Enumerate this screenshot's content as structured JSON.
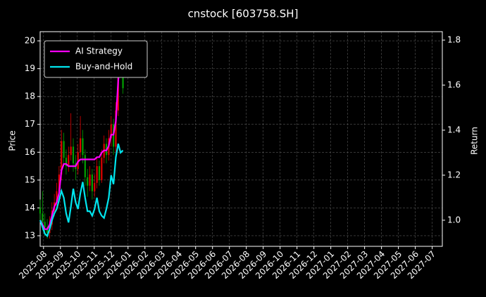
{
  "chart_data": {
    "type": "candlestick",
    "title": "cnstock [603758.SH]",
    "ylabel": "Price",
    "y2label": "Return",
    "x": [
      -0.2,
      -0.06,
      0.08,
      0.22,
      0.36,
      0.5,
      0.64,
      0.78,
      0.92,
      1.06,
      1.2,
      1.34,
      1.48,
      1.62,
      1.76,
      1.9,
      2.04,
      2.18,
      2.32,
      2.46,
      2.6,
      2.74,
      2.88,
      3.02,
      3.16,
      3.3,
      3.44,
      3.58,
      3.72,
      3.86,
      4.0,
      4.14,
      4.28,
      4.42,
      4.56,
      4.7
    ],
    "open": [
      14.0,
      13.8,
      13.5,
      13.3,
      13.1,
      13.4,
      13.9,
      14.2,
      14.6,
      15.2,
      16.4,
      15.8,
      15.5,
      15.9,
      16.2,
      15.6,
      15.4,
      16.0,
      16.5,
      15.9,
      15.1,
      14.8,
      15.2,
      14.6,
      14.9,
      15.5,
      15.0,
      15.8,
      16.3,
      15.9,
      16.5,
      17.0,
      16.2,
      17.5,
      19.2,
      19.5
    ],
    "high": [
      14.3,
      14.6,
      13.8,
      13.6,
      13.7,
      14.2,
      14.5,
      14.9,
      15.5,
      16.8,
      16.7,
      16.1,
      16.2,
      17.4,
      16.5,
      15.9,
      16.3,
      17.3,
      16.8,
      16.1,
      15.4,
      15.5,
      15.4,
      15.2,
      15.8,
      15.7,
      16.1,
      16.6,
      16.5,
      16.8,
      17.3,
      17.2,
      17.8,
      19.6,
      19.9,
      19.7
    ],
    "low": [
      13.5,
      13.2,
      13.0,
      12.9,
      12.9,
      13.2,
      13.7,
      14.0,
      14.4,
      15.0,
      15.5,
      15.2,
      15.3,
      15.7,
      15.3,
      15.0,
      15.2,
      15.8,
      15.6,
      14.8,
      14.4,
      14.6,
      14.3,
      14.4,
      14.7,
      14.8,
      14.9,
      15.6,
      15.6,
      15.7,
      16.2,
      15.9,
      16.0,
      17.3,
      18.9,
      18.1
    ],
    "close": [
      13.8,
      13.5,
      13.3,
      13.1,
      13.4,
      13.9,
      14.2,
      14.6,
      15.2,
      16.4,
      15.8,
      15.5,
      15.9,
      16.2,
      15.6,
      15.4,
      16.0,
      16.5,
      15.9,
      15.1,
      14.8,
      15.2,
      14.6,
      14.9,
      15.5,
      15.0,
      15.8,
      16.3,
      15.9,
      16.5,
      17.0,
      16.2,
      17.5,
      19.2,
      19.5,
      18.3
    ],
    "up_color": "#e00000",
    "down_color": "#00a000",
    "series": [
      {
        "name": "AI Strategy",
        "color": "#ff00ff",
        "axis": "y2",
        "values": [
          1.0,
          0.98,
          0.96,
          0.96,
          0.98,
          1.02,
          1.06,
          1.08,
          1.12,
          1.22,
          1.25,
          1.25,
          1.24,
          1.24,
          1.24,
          1.24,
          1.26,
          1.27,
          1.27,
          1.27,
          1.27,
          1.27,
          1.27,
          1.27,
          1.28,
          1.28,
          1.3,
          1.31,
          1.31,
          1.33,
          1.38,
          1.38,
          1.44,
          1.62,
          1.76,
          1.7
        ]
      },
      {
        "name": "Buy-and-Hold",
        "color": "#00e5ee",
        "axis": "y2",
        "values": [
          1.0,
          0.97,
          0.94,
          0.93,
          0.96,
          1.0,
          1.03,
          1.05,
          1.09,
          1.13,
          1.1,
          1.03,
          0.99,
          1.06,
          1.14,
          1.08,
          1.05,
          1.12,
          1.17,
          1.1,
          1.04,
          1.04,
          1.02,
          1.05,
          1.1,
          1.04,
          1.02,
          1.01,
          1.05,
          1.1,
          1.2,
          1.16,
          1.28,
          1.34,
          1.3,
          1.31
        ]
      }
    ],
    "xlim": [
      -0.2,
      23.6
    ],
    "xticks": [
      {
        "value": 0,
        "label": "2025-08"
      },
      {
        "value": 1,
        "label": "2025-09"
      },
      {
        "value": 2,
        "label": "2025-10"
      },
      {
        "value": 3,
        "label": "2025-11"
      },
      {
        "value": 4,
        "label": "2025-12"
      },
      {
        "value": 5,
        "label": "2026-01"
      },
      {
        "value": 6,
        "label": "2026-02"
      },
      {
        "value": 7,
        "label": "2026-03"
      },
      {
        "value": 8,
        "label": "2026-04"
      },
      {
        "value": 9,
        "label": "2026-05"
      },
      {
        "value": 10,
        "label": "2026-06"
      },
      {
        "value": 11,
        "label": "2026-07"
      },
      {
        "value": 12,
        "label": "2026-08"
      },
      {
        "value": 13,
        "label": "2026-09"
      },
      {
        "value": 14,
        "label": "2026-10"
      },
      {
        "value": 15,
        "label": "2026-11"
      },
      {
        "value": 16,
        "label": "2026-12"
      },
      {
        "value": 17,
        "label": "2027-01"
      },
      {
        "value": 18,
        "label": "2027-02"
      },
      {
        "value": 19,
        "label": "2027-03"
      },
      {
        "value": 20,
        "label": "2027-04"
      },
      {
        "value": 21,
        "label": "2027-05"
      },
      {
        "value": 22,
        "label": "2027-06"
      },
      {
        "value": 23,
        "label": "2027-07"
      }
    ],
    "ylim": [
      12.62,
      20.33
    ],
    "yticks": [
      13,
      14,
      15,
      16,
      17,
      18,
      19,
      20
    ],
    "y2lim": [
      0.884,
      1.8375
    ],
    "y2ticks": [
      {
        "value": 1,
        "label": "1.0"
      },
      1.2,
      1.4,
      1.6,
      1.8
    ],
    "grid": true,
    "legend": "upper left"
  }
}
